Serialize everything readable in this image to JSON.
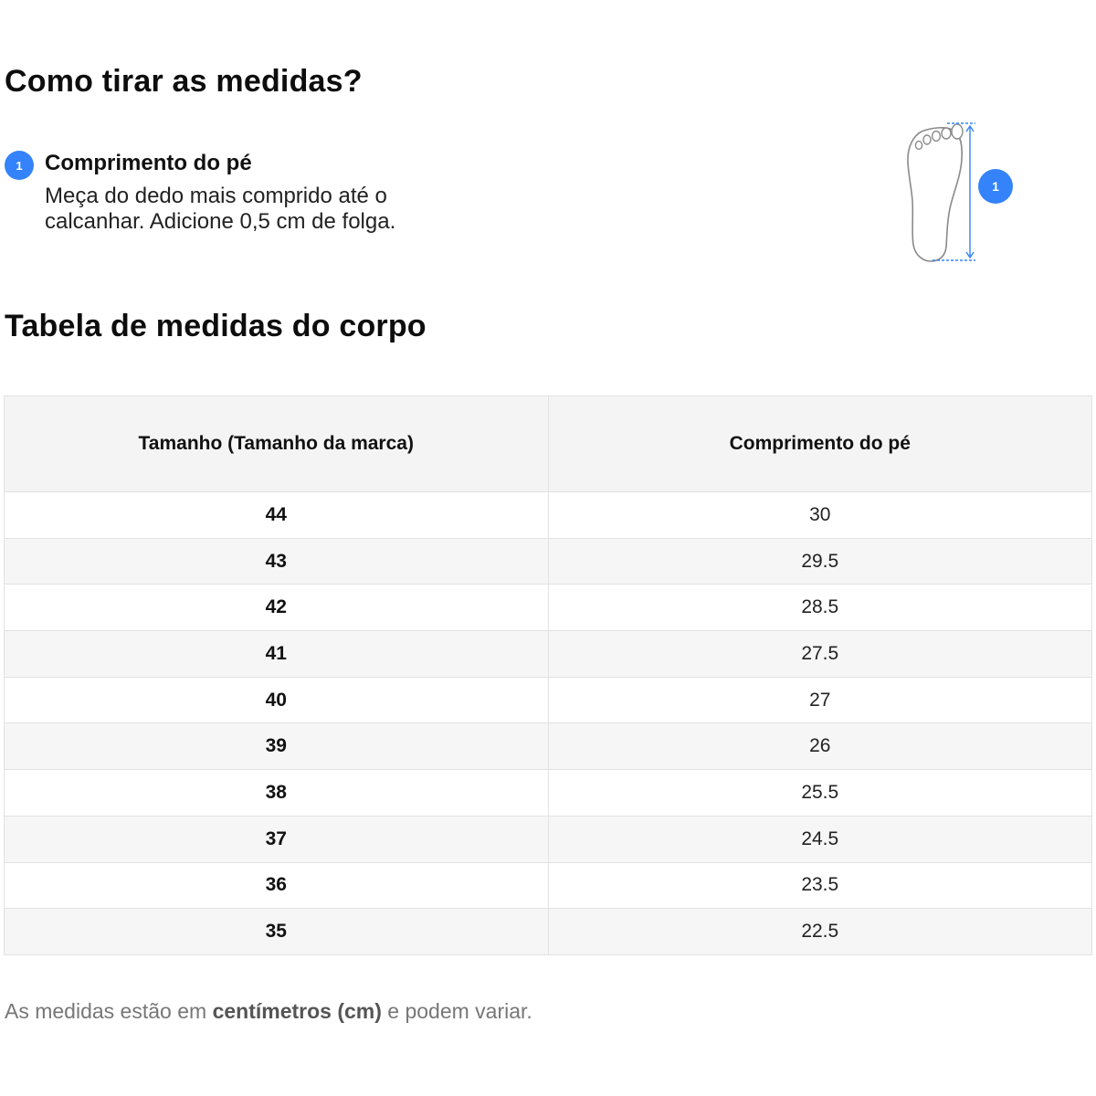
{
  "how_to_measure": {
    "title": "Como tirar as medidas?",
    "step": {
      "number": "1",
      "title": "Comprimento do pé",
      "description": "Meça do dedo mais comprido até o calcanhar. Adicione 0,5 cm de folga."
    },
    "figure": {
      "icon": "foot-measure-icon",
      "badge": "1"
    }
  },
  "table": {
    "title": "Tabela de medidas do corpo",
    "headers": [
      "Tamanho (Tamanho da marca)",
      "Comprimento do pé"
    ],
    "rows": [
      [
        "44",
        "30"
      ],
      [
        "43",
        "29.5"
      ],
      [
        "42",
        "28.5"
      ],
      [
        "41",
        "27.5"
      ],
      [
        "40",
        "27"
      ],
      [
        "39",
        "26"
      ],
      [
        "38",
        "25.5"
      ],
      [
        "37",
        "24.5"
      ],
      [
        "36",
        "23.5"
      ],
      [
        "35",
        "22.5"
      ]
    ]
  },
  "note": {
    "prefix": "As medidas estão em ",
    "emphasis": "centímetros (cm)",
    "suffix": " e podem variar."
  },
  "colors": {
    "accent": "#3483fa",
    "header_bg": "#f4f4f4",
    "stripe_bg": "#f6f6f6",
    "border": "#e2e2e2"
  }
}
